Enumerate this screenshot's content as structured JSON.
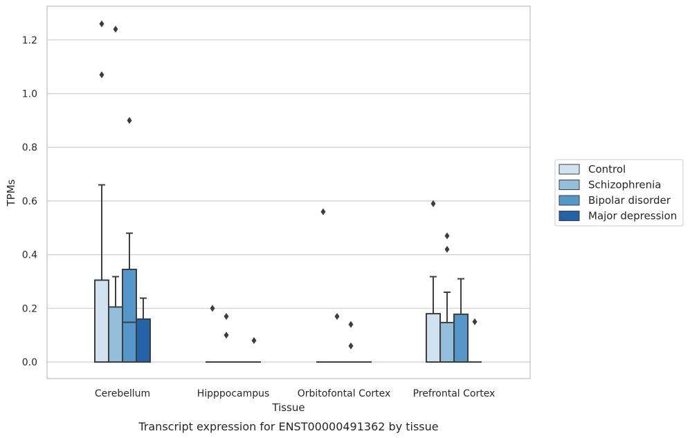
{
  "chart_data": {
    "type": "box",
    "categories": [
      "Cerebellum",
      "Hipppocampus",
      "Orbitofontal Cortex",
      "Prefrontal Cortex"
    ],
    "xlabel": "Tissue",
    "ylabel": "TPMs",
    "caption": "Transcript expression for ENST00000491362 by tissue",
    "ylim": [
      -0.06,
      1.33
    ],
    "yticks": [
      0.0,
      0.2,
      0.4,
      0.6,
      0.8,
      1.0,
      1.2
    ],
    "ytick_labels": [
      "0.0",
      "0.2",
      "0.4",
      "0.6",
      "0.8",
      "1.0",
      "1.2"
    ],
    "grid": true,
    "legend_position": "right",
    "series": [
      {
        "name": "Control",
        "color": "#d0e1f0",
        "boxes": [
          {
            "q1": 0.0,
            "median": 0.0,
            "q3": 0.305,
            "whisker_low": 0.0,
            "whisker_high": 0.66,
            "outliers": [
              1.26,
              1.07
            ]
          },
          {
            "q1": 0.0,
            "median": 0.0,
            "q3": 0.0,
            "whisker_low": 0.0,
            "whisker_high": 0.0,
            "outliers": [
              0.2
            ]
          },
          {
            "q1": 0.0,
            "median": 0.0,
            "q3": 0.0,
            "whisker_low": 0.0,
            "whisker_high": 0.0,
            "outliers": [
              0.56
            ]
          },
          {
            "q1": 0.0,
            "median": 0.0,
            "q3": 0.18,
            "whisker_low": 0.0,
            "whisker_high": 0.318,
            "outliers": [
              0.59
            ]
          }
        ]
      },
      {
        "name": "Schizophrenia",
        "color": "#93bfdb",
        "boxes": [
          {
            "q1": 0.0,
            "median": 0.0,
            "q3": 0.205,
            "whisker_low": 0.0,
            "whisker_high": 0.318,
            "outliers": [
              1.24
            ]
          },
          {
            "q1": 0.0,
            "median": 0.0,
            "q3": 0.0,
            "whisker_low": 0.0,
            "whisker_high": 0.0,
            "outliers": [
              0.17,
              0.1
            ]
          },
          {
            "q1": 0.0,
            "median": 0.0,
            "q3": 0.0,
            "whisker_low": 0.0,
            "whisker_high": 0.0,
            "outliers": [
              0.17
            ]
          },
          {
            "q1": 0.0,
            "median": 0.0,
            "q3": 0.147,
            "whisker_low": 0.0,
            "whisker_high": 0.26,
            "outliers": [
              0.47,
              0.42
            ]
          }
        ]
      },
      {
        "name": "Bipolar disorder",
        "color": "#5497c8",
        "boxes": [
          {
            "q1": 0.0,
            "median": 0.148,
            "q3": 0.345,
            "whisker_low": 0.0,
            "whisker_high": 0.48,
            "outliers": [
              0.9
            ]
          },
          {
            "q1": 0.0,
            "median": 0.0,
            "q3": 0.0,
            "whisker_low": 0.0,
            "whisker_high": 0.0,
            "outliers": []
          },
          {
            "q1": 0.0,
            "median": 0.0,
            "q3": 0.0,
            "whisker_low": 0.0,
            "whisker_high": 0.0,
            "outliers": [
              0.14,
              0.06
            ]
          },
          {
            "q1": 0.0,
            "median": 0.0,
            "q3": 0.178,
            "whisker_low": 0.0,
            "whisker_high": 0.31,
            "outliers": []
          }
        ]
      },
      {
        "name": "Major depression",
        "color": "#2462a8",
        "boxes": [
          {
            "q1": 0.0,
            "median": 0.0,
            "q3": 0.16,
            "whisker_low": 0.0,
            "whisker_high": 0.238,
            "outliers": []
          },
          {
            "q1": 0.0,
            "median": 0.0,
            "q3": 0.0,
            "whisker_low": 0.0,
            "whisker_high": 0.0,
            "outliers": [
              0.08
            ]
          },
          {
            "q1": 0.0,
            "median": 0.0,
            "q3": 0.0,
            "whisker_low": 0.0,
            "whisker_high": 0.0,
            "outliers": []
          },
          {
            "q1": 0.0,
            "median": 0.0,
            "q3": 0.0,
            "whisker_low": 0.0,
            "whisker_high": 0.0,
            "outliers": [
              0.15
            ]
          }
        ]
      }
    ]
  }
}
